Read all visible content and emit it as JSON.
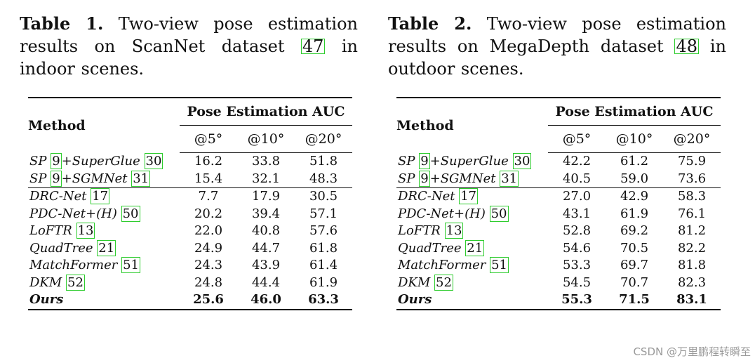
{
  "tables": [
    {
      "caption_label": "Table 1.",
      "caption_before": "Two-view pose estimation results on ScanNet dataset",
      "caption_cite": "47",
      "caption_after": "in indoor scenes.",
      "method_header": "Method",
      "group_header": "Pose Estimation AUC",
      "columns": [
        "@5°",
        "@10°",
        "@20°"
      ],
      "rows": [
        {
          "method": "SP",
          "cite1": "9",
          "mid": "+SuperGlue",
          "cite2": "30",
          "values": [
            "16.2",
            "33.8",
            "51.8"
          ]
        },
        {
          "method": "SP",
          "cite1": "9",
          "mid": "+SGMNet",
          "cite2": "31",
          "values": [
            "15.4",
            "32.1",
            "48.3"
          ]
        },
        {
          "method": "DRC-Net",
          "cite1": "17",
          "values": [
            "7.7",
            "17.9",
            "30.5"
          ]
        },
        {
          "method": "PDC-Net+(H)",
          "cite1": "50",
          "values": [
            "20.2",
            "39.4",
            "57.1"
          ]
        },
        {
          "method": "LoFTR",
          "cite1": "13",
          "values": [
            "22.0",
            "40.8",
            "57.6"
          ]
        },
        {
          "method": "QuadTree",
          "cite1": "21",
          "values": [
            "24.9",
            "44.7",
            "61.8"
          ]
        },
        {
          "method": "MatchFormer",
          "cite1": "51",
          "values": [
            "24.3",
            "43.9",
            "61.4"
          ]
        },
        {
          "method": "DKM",
          "cite1": "52",
          "values": [
            "24.8",
            "44.4",
            "61.9"
          ]
        },
        {
          "method": "Ours",
          "values": [
            "25.6",
            "46.0",
            "63.3"
          ]
        }
      ]
    },
    {
      "caption_label": "Table 2.",
      "caption_before": "Two-view pose estimation results on MegaDepth dataset",
      "caption_cite": "48",
      "caption_after": "in outdoor scenes.",
      "method_header": "Method",
      "group_header": "Pose Estimation AUC",
      "columns": [
        "@5°",
        "@10°",
        "@20°"
      ],
      "rows": [
        {
          "method": "SP",
          "cite1": "9",
          "mid": "+SuperGlue",
          "cite2": "30",
          "values": [
            "42.2",
            "61.2",
            "75.9"
          ]
        },
        {
          "method": "SP",
          "cite1": "9",
          "mid": "+SGMNet",
          "cite2": "31",
          "values": [
            "40.5",
            "59.0",
            "73.6"
          ]
        },
        {
          "method": "DRC-Net",
          "cite1": "17",
          "values": [
            "27.0",
            "42.9",
            "58.3"
          ]
        },
        {
          "method": "PDC-Net+(H)",
          "cite1": "50",
          "values": [
            "43.1",
            "61.9",
            "76.1"
          ]
        },
        {
          "method": "LoFTR",
          "cite1": "13",
          "values": [
            "52.8",
            "69.2",
            "81.2"
          ]
        },
        {
          "method": "QuadTree",
          "cite1": "21",
          "values": [
            "54.6",
            "70.5",
            "82.2"
          ]
        },
        {
          "method": "MatchFormer",
          "cite1": "51",
          "values": [
            "53.3",
            "69.7",
            "81.8"
          ]
        },
        {
          "method": "DKM",
          "cite1": "52",
          "values": [
            "54.5",
            "70.7",
            "82.3"
          ]
        },
        {
          "method": "Ours",
          "values": [
            "55.3",
            "71.5",
            "83.1"
          ]
        }
      ]
    }
  ],
  "watermark": "CSDN @万里鹏程转瞬至",
  "colors": {
    "citation_box": "#2ecc2e",
    "text": "#111111",
    "watermark": "#9a9a9a"
  }
}
